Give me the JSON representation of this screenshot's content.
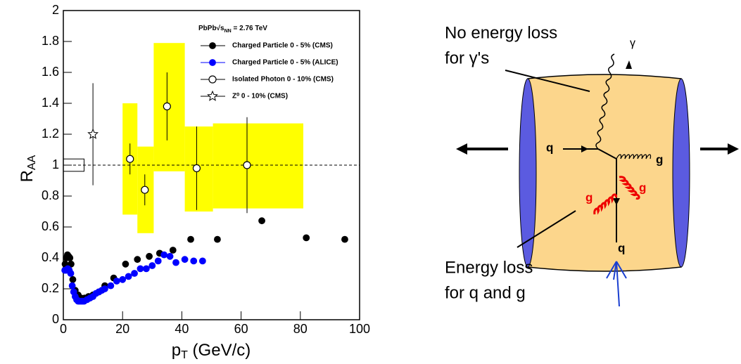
{
  "chart_data": {
    "type": "scatter",
    "xlabel": {
      "main": "p",
      "sub": "T",
      "rest": " (GeV/c)"
    },
    "ylabel": {
      "main": "R",
      "sub": "AA"
    },
    "legend_title": {
      "main": "PbPb√s",
      "sub": "NN",
      "rest": " = 2.76 TeV"
    },
    "xlim": [
      0,
      100
    ],
    "xticks": [
      0,
      20,
      40,
      60,
      80,
      100
    ],
    "ylim": [
      0,
      2
    ],
    "yticks": [
      0,
      0.2,
      0.4,
      0.6,
      0.8,
      1,
      1.2,
      1.4,
      1.6,
      1.8,
      2
    ],
    "reference_line": 1,
    "normalization_box": {
      "x": [
        0,
        7
      ],
      "y": [
        0.96,
        1.04
      ]
    },
    "bands": {
      "color": "#ffff00",
      "items": [
        {
          "x": [
            20,
            25
          ],
          "y": [
            0.68,
            1.4
          ]
        },
        {
          "x": [
            25,
            30.5
          ],
          "y": [
            0.56,
            1.12
          ]
        },
        {
          "x": [
            30.5,
            41
          ],
          "y": [
            0.96,
            1.79
          ]
        },
        {
          "x": [
            41,
            50.5
          ],
          "y": [
            0.7,
            1.25
          ]
        },
        {
          "x": [
            50.5,
            81
          ],
          "y": [
            0.72,
            1.27
          ]
        }
      ]
    },
    "series": [
      {
        "name": "Charged Particle 0 - 5% (CMS)",
        "color": "#000000",
        "marker": "filled",
        "x": [
          0.6,
          1,
          1.4,
          1.8,
          2.2,
          2.6,
          3.2,
          4,
          5,
          6,
          7.2,
          8.5,
          10,
          12,
          14,
          17,
          21,
          25,
          29,
          32.5,
          37,
          43,
          52,
          67,
          82,
          95
        ],
        "values": [
          0.36,
          0.4,
          0.42,
          0.41,
          0.4,
          0.36,
          0.26,
          0.19,
          0.16,
          0.14,
          0.14,
          0.15,
          0.16,
          0.18,
          0.22,
          0.27,
          0.36,
          0.39,
          0.41,
          0.43,
          0.45,
          0.52,
          0.52,
          0.64,
          0.53,
          0.52
        ]
      },
      {
        "name": "Charged Particle 0 - 5% (ALICE)",
        "color": "#0000ff",
        "marker": "filled",
        "x": [
          0.5,
          1,
          1.5,
          2,
          2.5,
          3,
          3.5,
          4,
          4.5,
          5,
          5.5,
          6,
          6.5,
          7,
          8,
          9,
          10,
          11,
          12,
          13,
          14,
          16,
          18,
          20,
          22,
          24,
          26,
          28,
          30,
          32,
          34,
          36,
          38,
          41,
          44,
          47
        ],
        "values": [
          0.32,
          0.32,
          0.33,
          0.32,
          0.3,
          0.22,
          0.18,
          0.15,
          0.13,
          0.12,
          0.12,
          0.12,
          0.12,
          0.12,
          0.13,
          0.14,
          0.15,
          0.17,
          0.18,
          0.19,
          0.2,
          0.22,
          0.25,
          0.26,
          0.28,
          0.3,
          0.33,
          0.33,
          0.35,
          0.38,
          0.42,
          0.41,
          0.37,
          0.39,
          0.38,
          0.38
        ]
      },
      {
        "name": "Isolated Photon 0 - 10% (CMS)",
        "color": "#000000",
        "marker": "open",
        "x": [
          22.5,
          27.5,
          35,
          45,
          62
        ],
        "values": [
          1.04,
          0.84,
          1.38,
          0.98,
          1
        ],
        "errors": [
          0.1,
          0.1,
          0.22,
          0.27,
          0.31
        ]
      },
      {
        "name": "Z⁰    0 - 10% (CMS)",
        "color": "#000000",
        "marker": "star",
        "x": [
          10
        ],
        "values": [
          1.2
        ],
        "errors": [
          0.33
        ]
      }
    ]
  },
  "diagram": {
    "top_text": [
      "No energy loss",
      "for γ's"
    ],
    "bottom_text": [
      "Energy loss",
      "for q and g"
    ],
    "labels": {
      "photon": "γ",
      "quark_in": "q",
      "gluon_out": "g",
      "gluon_red_left": "g",
      "gluon_red_right": "g",
      "quark_out": "q"
    }
  }
}
